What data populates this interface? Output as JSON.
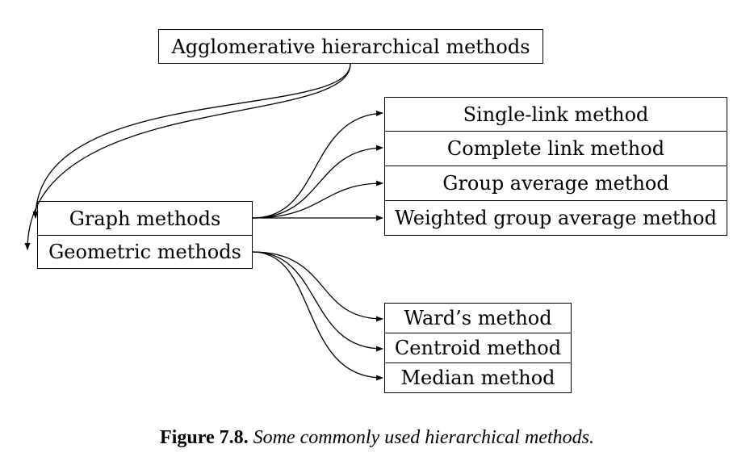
{
  "nodes": {
    "root": "Agglomerative hierarchical methods",
    "graph": "Graph methods",
    "geometric": "Geometric methods",
    "single_link": "Single-link method",
    "complete_link": "Complete link method",
    "group_average": "Group average method",
    "weighted_group_average": "Weighted group average method",
    "ward": "Ward’s method",
    "centroid": "Centroid method",
    "median": "Median method"
  },
  "edges": [
    {
      "from": "root",
      "to": "graph"
    },
    {
      "from": "root",
      "to": "geometric"
    },
    {
      "from": "graph",
      "to": "single_link"
    },
    {
      "from": "graph",
      "to": "complete_link"
    },
    {
      "from": "graph",
      "to": "group_average"
    },
    {
      "from": "graph",
      "to": "weighted_group_average"
    },
    {
      "from": "geometric",
      "to": "ward"
    },
    {
      "from": "geometric",
      "to": "centroid"
    },
    {
      "from": "geometric",
      "to": "median"
    }
  ],
  "caption": {
    "label": "Figure 7.8.",
    "text": "Some commonly used hierarchical methods."
  }
}
